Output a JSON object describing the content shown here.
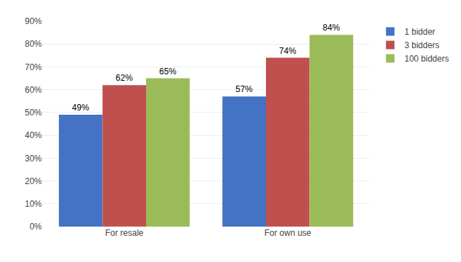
{
  "chart_data": {
    "type": "bar",
    "categories": [
      "For resale",
      "For own use"
    ],
    "series": [
      {
        "name": "1 bidder",
        "color": "#4472C4",
        "values": [
          0.49,
          0.57
        ],
        "value_labels": [
          "49%",
          "57%"
        ]
      },
      {
        "name": "3 bidders",
        "color": "#C0504D",
        "values": [
          0.62,
          0.74
        ],
        "value_labels": [
          "62%",
          "74%"
        ]
      },
      {
        "name": "100 bidders",
        "color": "#9BBB59",
        "values": [
          0.65,
          0.84
        ],
        "value_labels": [
          "65%",
          "84%"
        ]
      }
    ],
    "ylim": [
      0,
      0.9
    ],
    "yticks": [
      {
        "value": 0.0,
        "label": "0%"
      },
      {
        "value": 0.1,
        "label": "10%"
      },
      {
        "value": 0.2,
        "label": "20%"
      },
      {
        "value": 0.3,
        "label": "30%"
      },
      {
        "value": 0.4,
        "label": "40%"
      },
      {
        "value": 0.5,
        "label": "50%"
      },
      {
        "value": 0.6,
        "label": "60%"
      },
      {
        "value": 0.7,
        "label": "70%"
      },
      {
        "value": 0.8,
        "label": "80%"
      },
      {
        "value": 0.9,
        "label": "90%"
      }
    ],
    "grid": true,
    "data_labels": true,
    "legend": "upper right"
  }
}
